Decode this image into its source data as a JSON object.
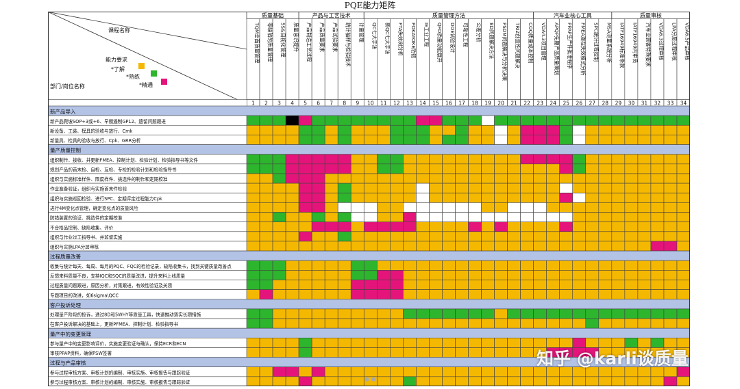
{
  "title": "PQE能力矩阵",
  "header": {
    "course_label": "课程名称",
    "dept_label": "部门/岗位名称",
    "legend_title": "能力要求",
    "legend": [
      {
        "label": "*了解",
        "color": "#f5b800"
      },
      {
        "label": "*熟练",
        "color": "#2db52d"
      },
      {
        "label": "*精通",
        "color": "#e5147a"
      }
    ]
  },
  "colors": {
    "empty": "#ffffff",
    "section": "#b3c3e6",
    "grid": "#444444"
  },
  "groups": [
    {
      "name": "质量基础",
      "span": 4
    },
    {
      "name": "产品与工艺技术",
      "span": 5
    },
    {
      "name": "质量管理方法",
      "span": 13
    },
    {
      "name": "汽车业核心工具",
      "span": 6
    },
    {
      "name": "质量审核",
      "span": 6
    }
  ],
  "courses": [
    {
      "num": "1",
      "name": "TQM全面质量管理"
    },
    {
      "num": "2",
      "name": "零缺陷的质量管理"
    },
    {
      "num": "3",
      "name": "5S&目视化管理"
    },
    {
      "num": "4",
      "name": "质量意识提升"
    },
    {
      "num": "5",
      "name": "产品制造工艺过程"
    },
    {
      "num": "6",
      "name": "产品质量要求"
    },
    {
      "num": "7",
      "name": "产品试验要求"
    },
    {
      "num": "8",
      "name": "统计抽样与检验技术"
    },
    {
      "num": "9",
      "name": "计量管理"
    },
    {
      "num": "10",
      "name": "QC七大手法"
    },
    {
      "num": "11",
      "name": "新QC七大手法"
    },
    {
      "num": "12",
      "name": "FTA失效树分析"
    },
    {
      "num": "13",
      "name": "POKAYOKE防错"
    },
    {
      "num": "14",
      "name": "IE工业工程"
    },
    {
      "num": "15",
      "name": "QFD质量功能展开"
    },
    {
      "num": "16",
      "name": "DOE试验设计"
    },
    {
      "num": "17",
      "name": "可靠性工程"
    },
    {
      "num": "18",
      "name": "公差分析"
    },
    {
      "num": "19",
      "name": "8D问题解决方法"
    },
    {
      "num": "20",
      "name": "PSDM问题解决与分析决策"
    },
    {
      "num": "21",
      "name": "TRIZ创造性问题解决"
    },
    {
      "num": "22",
      "name": "COQ质量成本控制"
    },
    {
      "num": "23",
      "name": "VDA4.3项目管理"
    },
    {
      "num": "24",
      "name": "APQP先期产品质量策划"
    },
    {
      "num": "25",
      "name": "PPAP生产件批准程序"
    },
    {
      "num": "26",
      "name": "FMEA潜在失效模式分析"
    },
    {
      "num": "27",
      "name": "SPC统计过程控制"
    },
    {
      "num": "28",
      "name": "MSA测量系统分析"
    },
    {
      "num": "29",
      "name": "IATF16949标准条款"
    },
    {
      "num": "30",
      "name": "IATF16949内审员"
    },
    {
      "num": "31",
      "name": "汽车业顾客特殊要求"
    },
    {
      "num": "32",
      "name": "VDA6.3过程审核"
    },
    {
      "num": "33",
      "name": "LPA分层过程审核"
    },
    {
      "num": "34",
      "name": "VDA6.5产品审核"
    }
  ],
  "rows": [
    {
      "type": "section",
      "label": "新产品导入"
    },
    {
      "type": "row",
      "label": "新产品爬坡SOP+3或+6、早期遏制GP12、遗留问题跟进",
      "levels": "2224322222222332220222222222222222"
    },
    {
      "type": "row",
      "label": "新设备、工装、模具的验收与放行、Cmk",
      "levels": "1111221211122211211013332011111111"
    },
    {
      "type": "row",
      "label": "新量具、检具的验收与放行、Cpk、GRR分析",
      "levels": "1111221211122212211013332011111111"
    },
    {
      "type": "section",
      "label": "量产质量控制"
    },
    {
      "type": "row",
      "label": "组织制作、接收、并更新FMEA、控制计划、检验计划、检验指导书等文件",
      "levels": "2223333311221111111113333211111111"
    },
    {
      "type": "row",
      "label": "规划产品的首末检、自检、互检、专检的检验计划和检验指导书",
      "levels": "2223333311221111111111113211111111"
    },
    {
      "type": "row",
      "label": "组织与实施标准样件、限度样件、挑选件的制作和定期校准",
      "levels": "1123331111111111111111111111111111"
    },
    {
      "type": "row",
      "label": "作业准备验证，组织与实施首末件检验",
      "levels": "1111331211111011111111110111111111"
    },
    {
      "type": "row",
      "label": "组织与实施巡回检验、进行SPC、定期评定过程能力Cpk",
      "levels": "1111331211111011111111113011111111"
    },
    {
      "type": "row",
      "label": "进行4M变化点管理，确定变化点的质量风险",
      "levels": "1111331000110000001100011111111111"
    },
    {
      "type": "row",
      "label": "防错装置的验证、挑选件的定期校准",
      "levels": "1121121200113000000000000111111111"
    },
    {
      "type": "row",
      "label": "不合格品控制、缺陷收集、评价",
      "levels": "1111133313333111131311113111111111"
    },
    {
      "type": "row",
      "label": "组织与作业过工指导书、并监督实施",
      "levels": "1111311211111111111111111111111111"
    },
    {
      "type": "row",
      "label": "组织与实施LPA分层审核",
      "levels": "1111111111111111111111111111111331"
    },
    {
      "type": "section",
      "label": "过程质量改善"
    },
    {
      "type": "row",
      "label": "收集与统计每天、每周、每月的PQC、FQC的检验记录，缺陷收集卡，找到关键质量改善点",
      "levels": "2221111122111111111111111111111111"
    },
    {
      "type": "row",
      "label": "反馈来料质量不良，支持IQC和SQC的质量改进，提升来料上线质量",
      "levels": "2221111122331111111111111111111111"
    },
    {
      "type": "row",
      "label": "过程质量问题跟进，原因分析，对策跟进，有效性验证及关闭",
      "levels": "2211111133331111111111111111111111"
    },
    {
      "type": "row",
      "label": "专题项目的改进，如6sigma\\QCC",
      "levels": "1311111133331111111111111111111111"
    },
    {
      "type": "section",
      "label": "客户投诉处理"
    },
    {
      "type": "row",
      "label": "处理量产阶段的投诉，通过8D和5WHY等质量工具，快速推动落实长期措施",
      "levels": "2211111111112222222122222222222222"
    },
    {
      "type": "row",
      "label": "在客户投诉解决的基础上，更新PFMEA、控制计划、检验指导书",
      "levels": "2211111111111111111111111121111111"
    },
    {
      "type": "section",
      "label": "量产中的变更管理"
    },
    {
      "type": "row",
      "label": "参与量产中的变更影响评价，实施变更验证与确认，保持ECR和ECN",
      "levels": "1111211111111111111111111311121211"
    },
    {
      "type": "row",
      "label": "审核PPAP资料，确保PSW签署",
      "levels": "1111211111111111111111133331111111"
    },
    {
      "type": "section",
      "label": "过程与产品审核"
    },
    {
      "type": "row",
      "label": "参与过程审核方案、审核计划的编制、审核实施、审核报告与跟踪验证",
      "levels": "1133131111111111111111111111111113"
    },
    {
      "type": "row",
      "label": "参与过程审核方案、审核计划的编制、审核实施、审核报告与跟踪验证",
      "levels": "1111311111112111111111111111111131"
    }
  ],
  "watermark": "知乎 @karli谈质量"
}
